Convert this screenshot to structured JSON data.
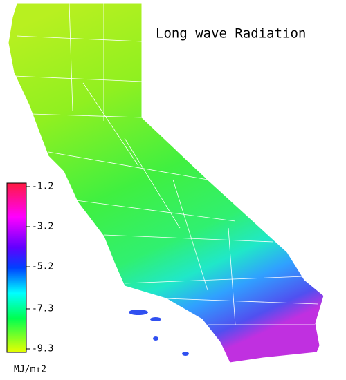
{
  "title": "Long wave Radiation",
  "colorbar": {
    "lim": [
      -9.3,
      -1.2
    ],
    "ticks": [
      -1.2,
      -3.2,
      -5.2,
      -7.3,
      -9.3
    ],
    "units": "MJ/m↑2"
  }
}
